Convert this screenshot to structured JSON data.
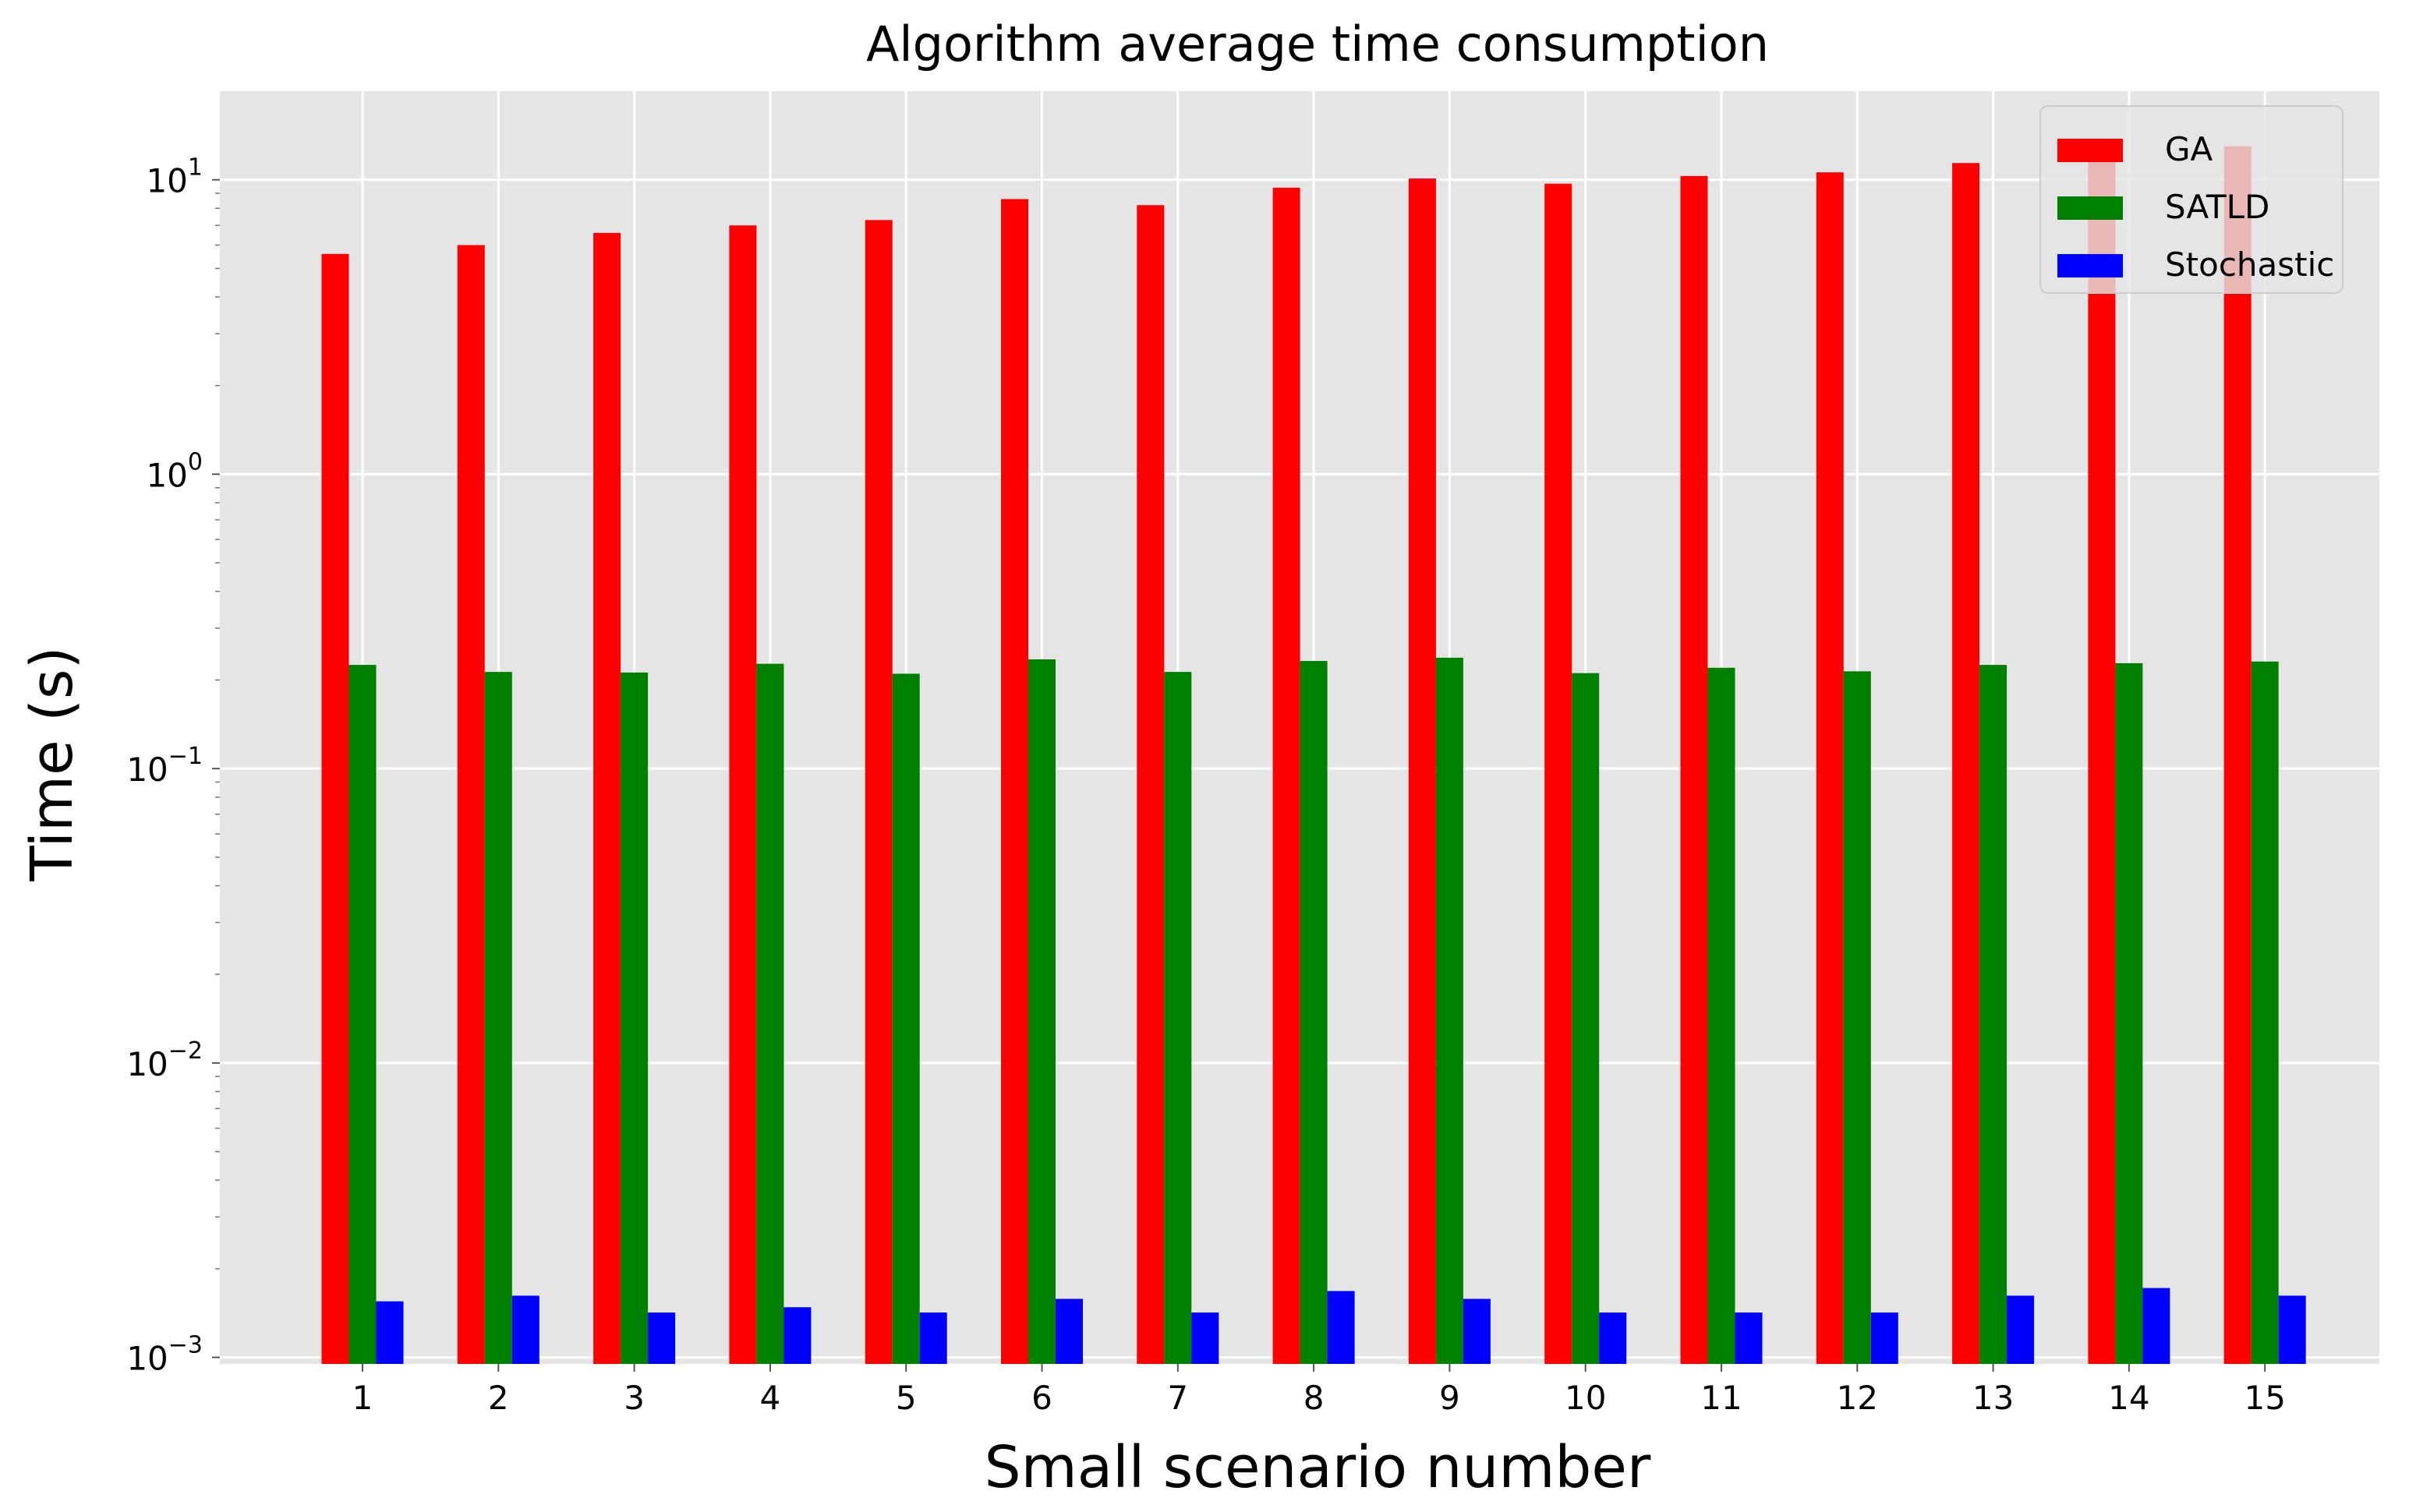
{
  "chart_data": {
    "type": "bar",
    "title": "Algorithm average time consumption",
    "xlabel": "Small scenario number",
    "ylabel": "Time (s)",
    "yscale": "log",
    "ylim": [
      0.00095,
      20
    ],
    "yticks": [
      {
        "base": "10",
        "exp": "−3",
        "value": 0.001
      },
      {
        "base": "10",
        "exp": "−2",
        "value": 0.01
      },
      {
        "base": "10",
        "exp": "−1",
        "value": 0.1
      },
      {
        "base": "10",
        "exp": "0",
        "value": 1
      },
      {
        "base": "10",
        "exp": "1",
        "value": 10
      }
    ],
    "categories": [
      "1",
      "2",
      "3",
      "4",
      "5",
      "6",
      "7",
      "8",
      "9",
      "10",
      "11",
      "12",
      "13",
      "14",
      "15"
    ],
    "series": [
      {
        "name": "GA",
        "color": "#ff0000",
        "values": [
          5.6,
          6.0,
          6.6,
          7.0,
          7.3,
          8.6,
          8.2,
          9.4,
          10.1,
          9.7,
          10.3,
          10.6,
          11.4,
          12.8,
          13.0
        ]
      },
      {
        "name": "SATLD",
        "color": "#008000",
        "values": [
          0.225,
          0.213,
          0.212,
          0.227,
          0.21,
          0.235,
          0.213,
          0.232,
          0.238,
          0.211,
          0.22,
          0.214,
          0.225,
          0.228,
          0.231
        ]
      },
      {
        "name": "Stochastic",
        "color": "#0000ff",
        "values": [
          0.00155,
          0.00162,
          0.00142,
          0.00148,
          0.00142,
          0.00158,
          0.00142,
          0.00168,
          0.00158,
          0.00142,
          0.00142,
          0.00142,
          0.00162,
          0.00172,
          0.00162
        ]
      }
    ],
    "grid": true,
    "legend_position": "top-right",
    "colors": {
      "plot_background": "#e5e5e5",
      "grid": "#ffffff"
    }
  }
}
